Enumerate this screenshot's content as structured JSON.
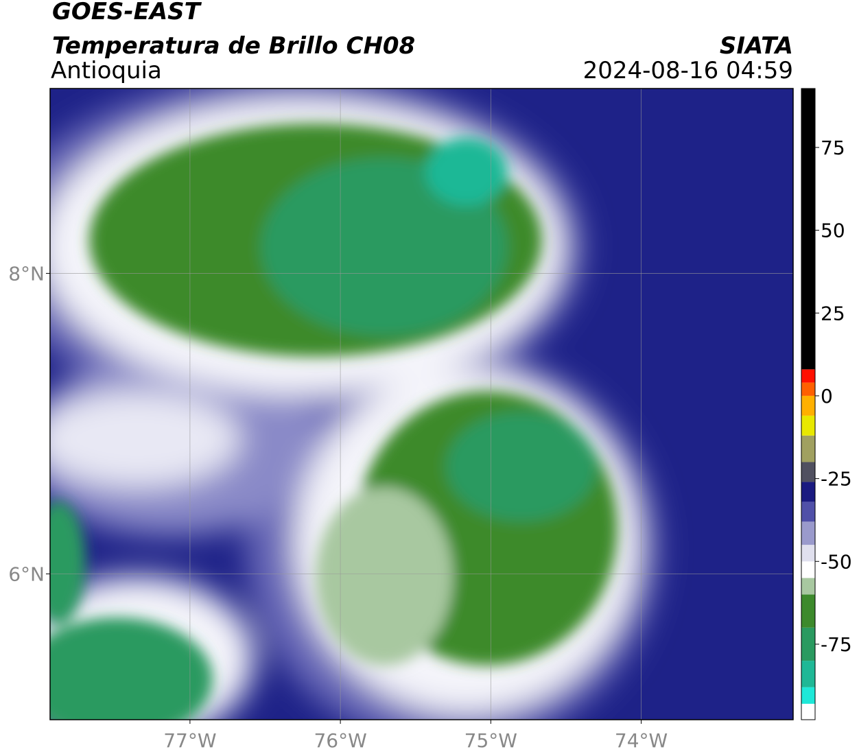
{
  "header": {
    "satellite": "GOES-EAST",
    "product": "Temperatura de Brillo CH08",
    "region": "Antioquia",
    "source": "SIATA",
    "datetime": "2024-08-16 04:59"
  },
  "map": {
    "xlim": [
      -77.93,
      -72.99
    ],
    "ylim": [
      5.03,
      9.23
    ],
    "xticks": [
      {
        "value": -77,
        "label": "77°W"
      },
      {
        "value": -76,
        "label": "76°W"
      },
      {
        "value": -75,
        "label": "75°W"
      },
      {
        "value": -74,
        "label": "74°W"
      }
    ],
    "yticks": [
      {
        "value": 6,
        "label": "6°N"
      },
      {
        "value": 8,
        "label": "8°N"
      }
    ],
    "grid": true
  },
  "colorbar": {
    "lim": [
      -97.8,
      92.8
    ],
    "ticks": [
      -75,
      -50,
      -25,
      0,
      25,
      50,
      75
    ],
    "levels": [
      {
        "min": -97.8,
        "max": -93,
        "color": "#ffffff"
      },
      {
        "min": -93,
        "max": -88,
        "color": "#1ee8d8"
      },
      {
        "min": -88,
        "max": -80,
        "color": "#1fb896"
      },
      {
        "min": -80,
        "max": -70,
        "color": "#2a9a60"
      },
      {
        "min": -70,
        "max": -60,
        "color": "#3d8a2c"
      },
      {
        "min": -60,
        "max": -55,
        "color": "#a8c8a0"
      },
      {
        "min": -55,
        "max": -50,
        "color": "#ffffff"
      },
      {
        "min": -50,
        "max": -45,
        "color": "#e0e0ee"
      },
      {
        "min": -45,
        "max": -38,
        "color": "#9a9acc"
      },
      {
        "min": -38,
        "max": -32,
        "color": "#5050a8"
      },
      {
        "min": -32,
        "max": -26,
        "color": "#1a1a80"
      },
      {
        "min": -26,
        "max": -20,
        "color": "#505060"
      },
      {
        "min": -20,
        "max": -12,
        "color": "#a0a060"
      },
      {
        "min": -12,
        "max": -6,
        "color": "#e8e800"
      },
      {
        "min": -6,
        "max": 0,
        "color": "#ffb000"
      },
      {
        "min": 0,
        "max": 4,
        "color": "#ff6000"
      },
      {
        "min": 4,
        "max": 8,
        "color": "#ff1000"
      },
      {
        "min": 8,
        "max": 92.8,
        "color": "#000000"
      }
    ]
  }
}
